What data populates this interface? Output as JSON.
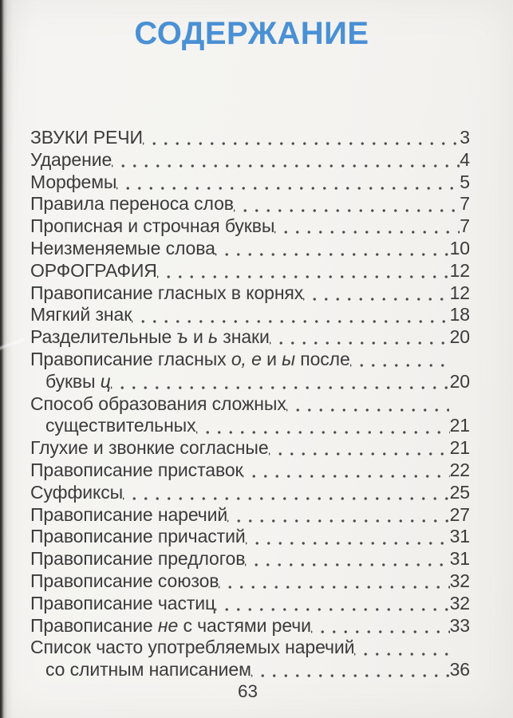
{
  "page": {
    "title": "СОДЕРЖАНИЕ",
    "footer_page_number": "63",
    "colors": {
      "title_blue": "#4a90d5",
      "text": "#3b3b3b",
      "dot_leader": "#4c4c4c",
      "background": "#f4f3f0"
    }
  },
  "toc": {
    "lines": [
      {
        "segments": [
          "ЗВУКИ РЕЧИ"
        ],
        "page": "3",
        "indent": false
      },
      {
        "segments": [
          "Ударение"
        ],
        "page": "4",
        "indent": false
      },
      {
        "segments": [
          "Морфемы"
        ],
        "page": "5",
        "indent": false
      },
      {
        "segments": [
          "Правила переноса слов"
        ],
        "page": "7",
        "indent": false
      },
      {
        "segments": [
          "Прописная и строчная буквы"
        ],
        "page": "7",
        "indent": false
      },
      {
        "segments": [
          "Неизменяемые слова"
        ],
        "page": "10",
        "indent": false
      },
      {
        "segments": [
          "ОРФОГРАФИЯ"
        ],
        "page": "12",
        "indent": false
      },
      {
        "segments": [
          "Правописание гласных в корнях"
        ],
        "page": "12",
        "indent": false
      },
      {
        "segments": [
          "Мягкий знак"
        ],
        "page": "18",
        "indent": false
      },
      {
        "segments": [
          "Разделительные ",
          {
            "t": "ъ",
            "i": true
          },
          " и ",
          {
            "t": "ь",
            "i": true
          },
          " знаки"
        ],
        "page": "20",
        "indent": false
      },
      {
        "segments": [
          "Правописание гласных ",
          {
            "t": "о, е",
            "i": true
          },
          " и ",
          {
            "t": "ы",
            "i": true
          },
          " после"
        ],
        "page": null,
        "indent": false
      },
      {
        "segments": [
          "буквы ",
          {
            "t": "ц",
            "i": true
          }
        ],
        "page": "20",
        "indent": true
      },
      {
        "segments": [
          "Способ образования сложных"
        ],
        "page": null,
        "indent": false
      },
      {
        "segments": [
          "существительных"
        ],
        "page": "21",
        "indent": true
      },
      {
        "segments": [
          "Глухие и звонкие согласные"
        ],
        "page": "21",
        "indent": false
      },
      {
        "segments": [
          "Правописание приставок"
        ],
        "page": "22",
        "indent": false
      },
      {
        "segments": [
          "Суффиксы"
        ],
        "page": "25",
        "indent": false
      },
      {
        "segments": [
          "Правописание наречий"
        ],
        "page": "27",
        "indent": false
      },
      {
        "segments": [
          "Правописание причастий"
        ],
        "page": "31",
        "indent": false
      },
      {
        "segments": [
          "Правописание предлогов"
        ],
        "page": "31",
        "indent": false
      },
      {
        "segments": [
          "Правописание союзов"
        ],
        "page": "32",
        "indent": false
      },
      {
        "segments": [
          "Правописание частиц"
        ],
        "page": "32",
        "indent": false
      },
      {
        "segments": [
          "Правописание ",
          {
            "t": "не",
            "i": true
          },
          " с частями речи"
        ],
        "page": "33",
        "indent": false
      },
      {
        "segments": [
          "Список часто употребляемых наречий"
        ],
        "page": null,
        "indent": false
      },
      {
        "segments": [
          "со слитным написанием"
        ],
        "page": "36",
        "indent": true
      }
    ]
  }
}
